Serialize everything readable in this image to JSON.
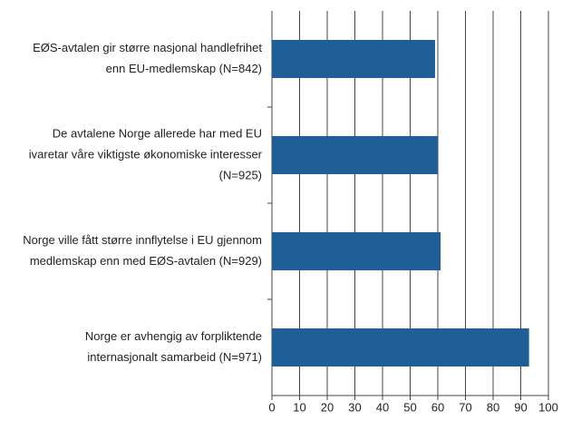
{
  "chart_data": {
    "type": "bar",
    "orientation": "horizontal",
    "categories": [
      [
        "EØS-avtalen gir større nasjonal handlefrihet",
        "enn EU-medlemskap (N=842)"
      ],
      [
        "De avtalene Norge allerede har med EU",
        "ivaretar våre viktigste økonomiske interesser",
        "(N=925)"
      ],
      [
        "Norge ville fått større innflytelse i EU gjennom",
        "medlemskap enn med EØS-avtalen (N=929)"
      ],
      [
        "Norge er avhengig av forpliktende",
        "internasjonalt samarbeid (N=971)"
      ]
    ],
    "values": [
      59,
      60,
      61,
      93
    ],
    "color": "#1f5e97",
    "xlim": [
      0,
      100
    ],
    "xticks": [
      0,
      10,
      20,
      30,
      40,
      50,
      60,
      70,
      80,
      90,
      100
    ],
    "grid": true
  }
}
